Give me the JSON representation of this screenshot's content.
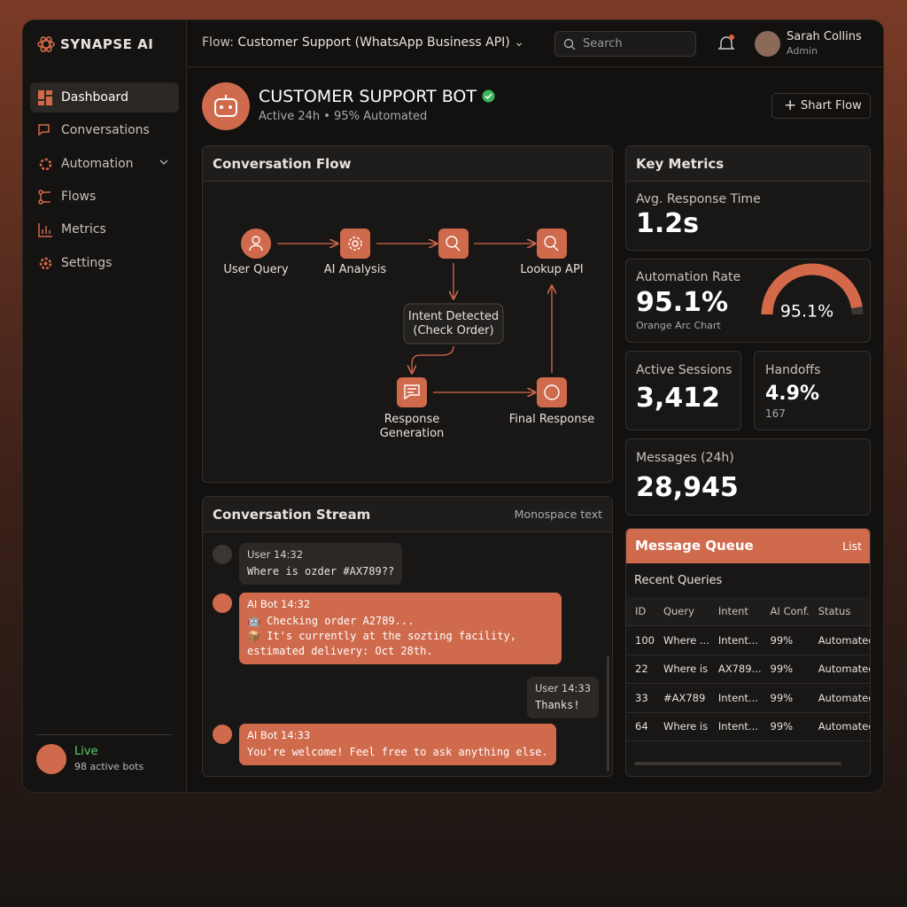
{
  "sidebar": {
    "brand": "SYNAPSE AI",
    "nav": [
      "Dashboard",
      "Conversations",
      "Automation",
      "Flows",
      "Metrics",
      "Settings"
    ],
    "status": {
      "label": "Live",
      "detail": "98 active bots"
    }
  },
  "topbar": {
    "flow_prefix": "Flow:",
    "flow_name": "Customer Support (WhatsApp Business API)",
    "search": "Search",
    "user": {
      "name": "Sarah Collins",
      "role": "Admin"
    }
  },
  "header": {
    "title": "CUSTOMER SUPPORT BOT",
    "subtitle": "Active 24h • 95% Automated",
    "button": "Shart Flow"
  },
  "flow": {
    "title": "Conversation Flow",
    "nodes": [
      {
        "label": "User Query"
      },
      {
        "label": "AI Analysis"
      },
      {
        "label": "Lookup API"
      },
      {
        "label": "Intent Detected\n(Check Order)"
      },
      {
        "label": "Response\nGeneration"
      },
      {
        "label": "Final Response"
      }
    ]
  },
  "metrics": {
    "title": "Key Metrics",
    "avg_response": {
      "label": "Avg. Response Time",
      "value": "1.2s"
    },
    "automation": {
      "label": "Automation Rate",
      "value": "95.1%",
      "caption": "Orange Arc Chart",
      "gauge": {
        "value": 95.1,
        "label": "95.1%"
      }
    },
    "active_sessions": {
      "label": "Active Sessions",
      "value": "3,412"
    },
    "handoffs": {
      "label": "Handoffs",
      "value": "4.9%",
      "detail": "167"
    },
    "messages": {
      "label": "Messages (24h)",
      "value": "28,945"
    }
  },
  "stream": {
    "title": "Conversation Stream",
    "note": "Monospace text",
    "messages": [
      {
        "sender": "User",
        "time": "14:32",
        "text": "Where is ozder #AX789??"
      },
      {
        "sender": "AI Bot",
        "time": "14:32",
        "text": "🤖 Checking order A2789...\n📦 It's currently at the sozting facility, estimated delivery: Oct 28th."
      },
      {
        "sender": "User",
        "time": "14:33",
        "text": "Thanks!"
      },
      {
        "sender": "AI Bot",
        "time": "14:33",
        "text": "You're welcome! Feel free to ask anything else."
      }
    ]
  },
  "queue": {
    "title": "Message Queue",
    "link": "List",
    "subtitle": "Recent Queries",
    "columns": [
      "ID",
      "Query",
      "Intent",
      "AI Conf.",
      "Status"
    ],
    "rows": [
      [
        "100",
        "Where ...",
        "Intent...",
        "99%",
        "Automated"
      ],
      [
        "22",
        "Where is",
        "AX789...",
        "99%",
        "Automated"
      ],
      [
        "33",
        "#AX789",
        "Intent...",
        "99%",
        "Automated"
      ],
      [
        "64",
        "Where is",
        "Intent...",
        "99%",
        "Automated"
      ]
    ]
  }
}
